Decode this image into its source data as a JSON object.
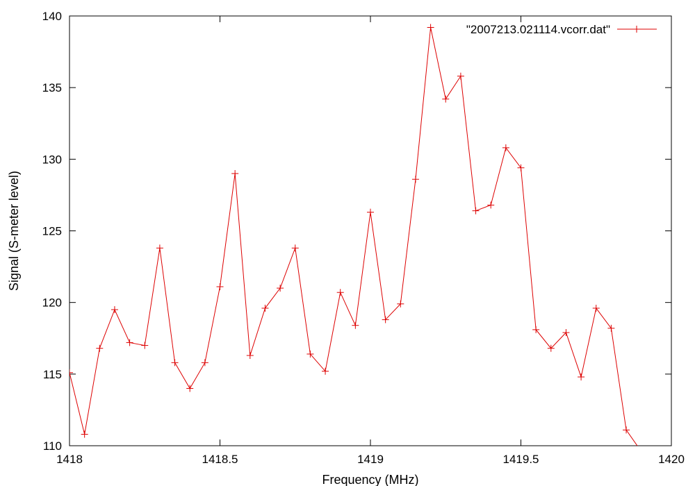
{
  "chart_data": {
    "type": "line",
    "title": "",
    "xlabel": "Frequency (MHz)",
    "ylabel": "Signal (S-meter level)",
    "xlim": [
      1418,
      1420
    ],
    "ylim": [
      110,
      140
    ],
    "x_ticks": [
      1418,
      1418.5,
      1419,
      1419.5,
      1420
    ],
    "x_tick_labels": [
      "1418",
      "1418.5",
      "1419",
      "1419.5",
      "1420"
    ],
    "y_ticks": [
      110,
      115,
      120,
      125,
      130,
      135,
      140
    ],
    "y_tick_labels": [
      "110",
      "115",
      "120",
      "125",
      "130",
      "135",
      "140"
    ],
    "grid": false,
    "legend_position": "top-right",
    "color": "#dd0000",
    "series": [
      {
        "name": "\"2007213.021114.vcorr.dat\"",
        "x": [
          1418.0,
          1418.05,
          1418.1,
          1418.15,
          1418.2,
          1418.25,
          1418.3,
          1418.35,
          1418.4,
          1418.45,
          1418.5,
          1418.55,
          1418.6,
          1418.65,
          1418.7,
          1418.75,
          1418.8,
          1418.85,
          1418.9,
          1418.95,
          1419.0,
          1419.05,
          1419.1,
          1419.15,
          1419.2,
          1419.25,
          1419.3,
          1419.35,
          1419.4,
          1419.45,
          1419.5,
          1419.55,
          1419.6,
          1419.65,
          1419.7,
          1419.75,
          1419.8,
          1419.85,
          1419.9
        ],
        "values": [
          115.1,
          110.8,
          116.8,
          119.5,
          117.2,
          117.0,
          123.8,
          115.8,
          114.0,
          115.8,
          121.1,
          129.0,
          116.3,
          119.6,
          121.0,
          123.8,
          116.4,
          115.2,
          120.7,
          118.4,
          126.3,
          118.8,
          119.9,
          128.6,
          139.2,
          134.2,
          135.8,
          126.4,
          126.8,
          130.8,
          129.4,
          118.1,
          116.8,
          117.9,
          114.8,
          119.6,
          118.2,
          111.1,
          109.6
        ]
      }
    ]
  }
}
